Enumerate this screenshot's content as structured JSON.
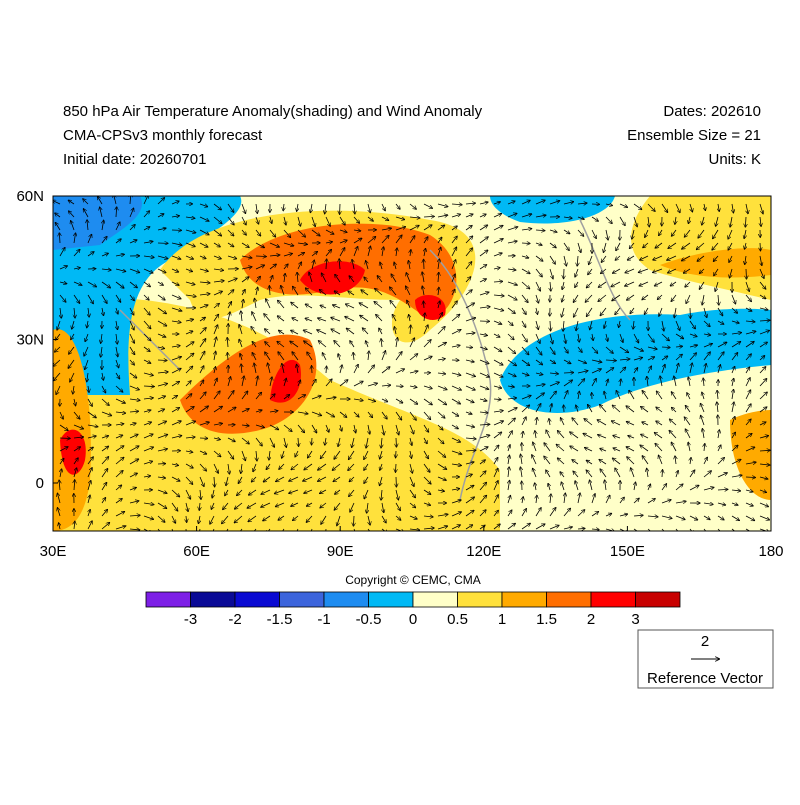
{
  "header": {
    "title": "850 hPa Air Temperature Anomaly(shading) and Wind Anomaly",
    "subtitle": "CMA-CPSv3 monthly forecast",
    "initial_date": "Initial date: 20260701",
    "dates": "Dates: 202610",
    "ensemble": "Ensemble Size = 21",
    "units": "Units: K"
  },
  "map": {
    "x_labels": [
      "30E",
      "60E",
      "90E",
      "120E",
      "150E",
      "180"
    ],
    "y_labels": [
      "60N",
      "30N",
      "0"
    ]
  },
  "copyright": "Copyright © CEMC, CMA",
  "colorbar": {
    "labels": [
      "-3",
      "-2",
      "-1.5",
      "-1",
      "-0.5",
      "0",
      "0.5",
      "1",
      "1.5",
      "2",
      "3"
    ],
    "colors": [
      "#7d1fe6",
      "#0a0a96",
      "#0a0ad2",
      "#3c64dc",
      "#1e8cf0",
      "#00b9f5",
      "#ffffc8",
      "#ffe13c",
      "#ffaa00",
      "#ff6e00",
      "#ff0000",
      "#c80000"
    ]
  },
  "reference_vector": {
    "magnitude": "2",
    "label": "Reference Vector"
  }
}
